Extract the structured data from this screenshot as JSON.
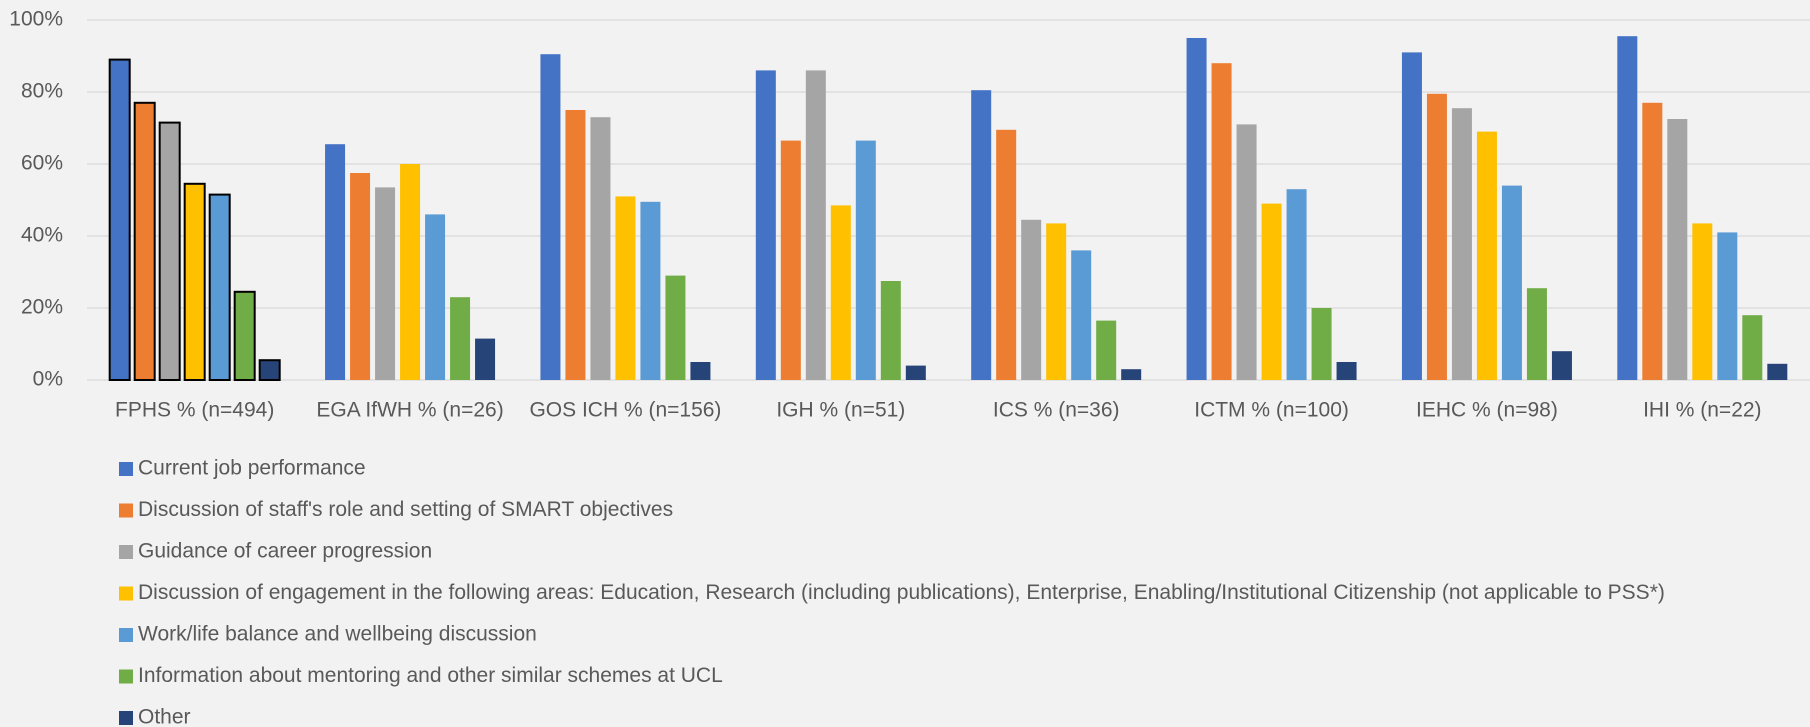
{
  "chart_data": {
    "type": "bar",
    "categories": [
      "FPHS % (n=494)",
      "EGA IfWH % (n=26)",
      "GOS ICH % (n=156)",
      "IGH % (n=51)",
      "ICS % (n=36)",
      "ICTM % (n=100)",
      "IEHC % (n=98)",
      "IHI % (n=22)"
    ],
    "series": [
      {
        "name": "Current job performance",
        "color": "#4472c4",
        "values": [
          89,
          65.5,
          90.5,
          86,
          80.5,
          95,
          91,
          95.5
        ]
      },
      {
        "name": "Discussion of staff's role and setting of SMART objectives",
        "color": "#ed7d31",
        "values": [
          77,
          57.5,
          75,
          66.5,
          69.5,
          88,
          79.5,
          77
        ]
      },
      {
        "name": "Guidance of career progression",
        "color": "#a5a5a5",
        "values": [
          71.5,
          53.5,
          73,
          86,
          44.5,
          71,
          75.5,
          72.5
        ]
      },
      {
        "name": "Discussion of engagement in the following areas: Education, Research (including publications), Enterprise, Enabling/Institutional Citizenship (not applicable to PSS*)",
        "color": "#ffc000",
        "values": [
          54.5,
          60,
          51,
          48.5,
          43.5,
          49,
          69,
          43.5
        ]
      },
      {
        "name": "Work/life balance and wellbeing discussion",
        "color": "#5b9bd5",
        "values": [
          51.5,
          46,
          49.5,
          66.5,
          36,
          53,
          54,
          41
        ]
      },
      {
        "name": "Information about mentoring and other similar schemes at UCL",
        "color": "#70ad47",
        "values": [
          24.5,
          23,
          29,
          27.5,
          16.5,
          20,
          25.5,
          18
        ]
      },
      {
        "name": "Other",
        "color": "#264478",
        "values": [
          5.5,
          11.5,
          5,
          4,
          3,
          5,
          8,
          4.5
        ]
      }
    ],
    "ylim": [
      0,
      100
    ],
    "yticks": [
      {
        "value": 0,
        "label": "0%"
      },
      {
        "value": 20,
        "label": "20%"
      },
      {
        "value": 40,
        "label": "40%"
      },
      {
        "value": 60,
        "label": "60%"
      },
      {
        "value": 80,
        "label": "80%"
      },
      {
        "value": 100,
        "label": "100%"
      }
    ],
    "grid": true,
    "outlined_category": 0,
    "legend": "bottom"
  }
}
